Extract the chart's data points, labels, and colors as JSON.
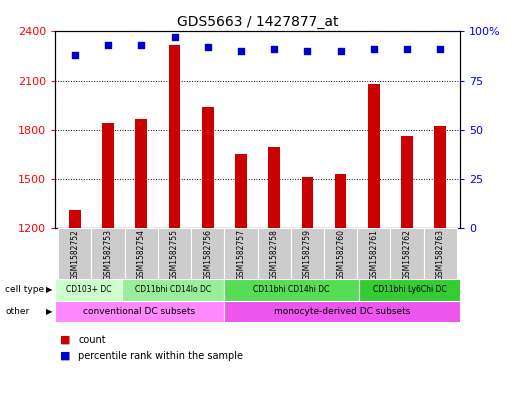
{
  "title": "GDS5663 / 1427877_at",
  "samples": [
    "GSM1582752",
    "GSM1582753",
    "GSM1582754",
    "GSM1582755",
    "GSM1582756",
    "GSM1582757",
    "GSM1582758",
    "GSM1582759",
    "GSM1582760",
    "GSM1582761",
    "GSM1582762",
    "GSM1582763"
  ],
  "counts": [
    1310,
    1840,
    1865,
    2320,
    1940,
    1650,
    1695,
    1510,
    1530,
    2080,
    1760,
    1820
  ],
  "percentiles": [
    88,
    93,
    93,
    97,
    92,
    90,
    91,
    90,
    90,
    91,
    91,
    91
  ],
  "ylim_left": [
    1200,
    2400
  ],
  "ylim_right": [
    0,
    100
  ],
  "yticks_left": [
    1200,
    1500,
    1800,
    2100,
    2400
  ],
  "yticks_right": [
    0,
    25,
    50,
    75,
    100
  ],
  "bar_color": "#cc0000",
  "dot_color": "#0000cc",
  "cell_spans": [
    {
      "label": "CD103+ DC",
      "s": 0,
      "e": 2,
      "color": "#ccffcc"
    },
    {
      "label": "CD11bhi CD14lo DC",
      "s": 2,
      "e": 5,
      "color": "#99ee99"
    },
    {
      "label": "CD11bhi CD14hi DC",
      "s": 5,
      "e": 9,
      "color": "#55dd55"
    },
    {
      "label": "CD11bhi Ly6Chi DC",
      "s": 9,
      "e": 12,
      "color": "#33cc33"
    }
  ],
  "other_spans": [
    {
      "label": "conventional DC subsets",
      "s": 0,
      "e": 5,
      "color": "#ff88ff"
    },
    {
      "label": "monocyte-derived DC subsets",
      "s": 5,
      "e": 12,
      "color": "#ee55ee"
    }
  ],
  "background_color": "#ffffff",
  "sample_bg_color": "#cccccc"
}
